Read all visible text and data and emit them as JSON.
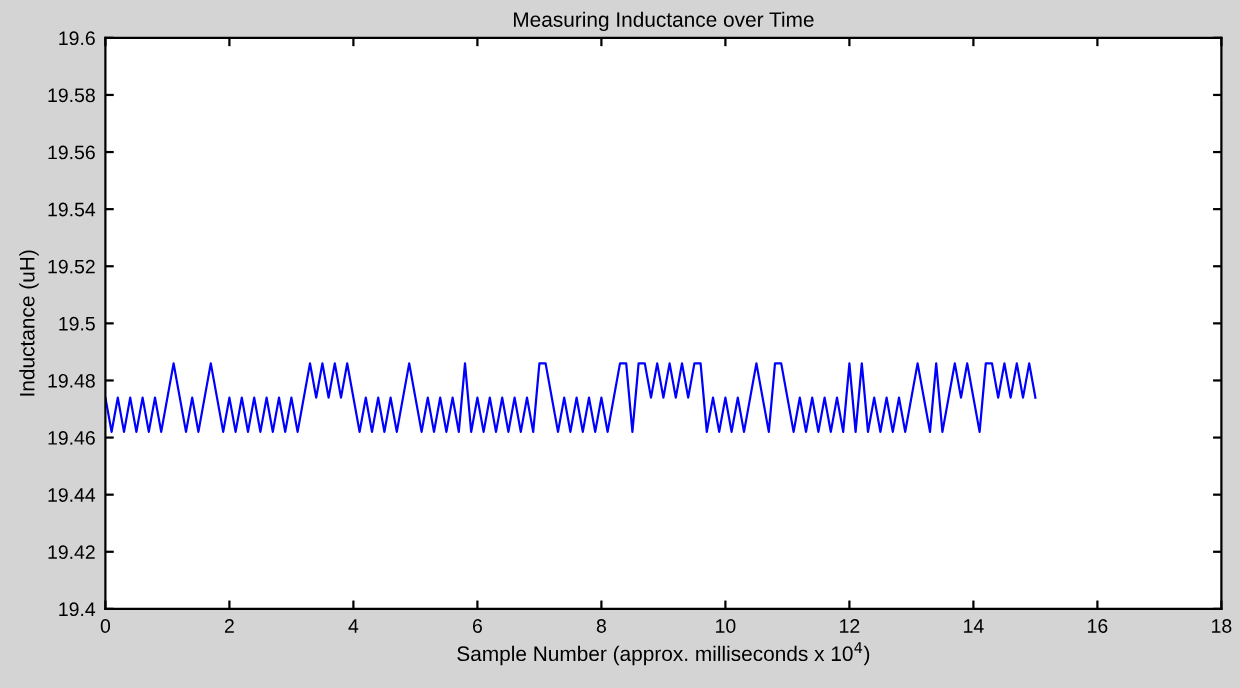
{
  "chart_data": {
    "type": "line",
    "title": "Measuring Inductance over Time",
    "xlabel": "Sample Number (approx. milliseconds x 10$^{4}$)",
    "ylabel": "Inductance (uH)",
    "xlim": [
      0,
      18
    ],
    "xticks": [
      0,
      2,
      4,
      6,
      8,
      10,
      12,
      14,
      16,
      18
    ],
    "ylim": [
      19.4,
      19.6
    ],
    "yticks": [
      19.4,
      19.42,
      19.44,
      19.46,
      19.48,
      19.5,
      19.52,
      19.54,
      19.56,
      19.58,
      19.6
    ],
    "grid": false,
    "legend": false,
    "marker": "none",
    "line_style": "solid",
    "series": [
      {
        "color": "#0000ff",
        "x": [
          0.0,
          0.1,
          0.2,
          0.3,
          0.4,
          0.5,
          0.6,
          0.7,
          0.8,
          0.9,
          1.0,
          1.1,
          1.2,
          1.3,
          1.4,
          1.5,
          1.6,
          1.7,
          1.8,
          1.9,
          2.0,
          2.1,
          2.2,
          2.3,
          2.4,
          2.5,
          2.6,
          2.7,
          2.8,
          2.9,
          3.0,
          3.1,
          3.2,
          3.3,
          3.4,
          3.5,
          3.6,
          3.7,
          3.8,
          3.9,
          4.0,
          4.1,
          4.2,
          4.3,
          4.4,
          4.5,
          4.6,
          4.7,
          4.8,
          4.9,
          5.0,
          5.1,
          5.2,
          5.3,
          5.4,
          5.5,
          5.6,
          5.7,
          5.8,
          5.9,
          6.0,
          6.1,
          6.2,
          6.3,
          6.4,
          6.5,
          6.6,
          6.7,
          6.8,
          6.9,
          7.0,
          7.1,
          7.2,
          7.3,
          7.4,
          7.5,
          7.6,
          7.7,
          7.8,
          7.9,
          8.0,
          8.1,
          8.2,
          8.3,
          8.4,
          8.5,
          8.6,
          8.7,
          8.8,
          8.9,
          9.0,
          9.1,
          9.2,
          9.3,
          9.4,
          9.5,
          9.6,
          9.7,
          9.8,
          9.9,
          10.0,
          10.1,
          10.2,
          10.3,
          10.4,
          10.5,
          10.6,
          10.7,
          10.8,
          10.9,
          11.0,
          11.1,
          11.2,
          11.3,
          11.4,
          11.5,
          11.6,
          11.7,
          11.8,
          11.9,
          12.0,
          12.1,
          12.2,
          12.3,
          12.4,
          12.5,
          12.6,
          12.7,
          12.8,
          12.9,
          13.0,
          13.1,
          13.2,
          13.3,
          13.4,
          13.5,
          13.6,
          13.7,
          13.8,
          13.9,
          14.0,
          14.1,
          14.2,
          14.3,
          14.4,
          14.5,
          14.6,
          14.7,
          14.8,
          14.9,
          15.0
        ],
        "values": [
          19.474,
          19.462,
          19.474,
          19.462,
          19.474,
          19.462,
          19.474,
          19.462,
          19.474,
          19.462,
          19.474,
          19.486,
          19.474,
          19.462,
          19.474,
          19.462,
          19.474,
          19.486,
          19.474,
          19.462,
          19.474,
          19.462,
          19.474,
          19.462,
          19.474,
          19.462,
          19.474,
          19.462,
          19.474,
          19.462,
          19.474,
          19.462,
          19.474,
          19.486,
          19.474,
          19.486,
          19.474,
          19.486,
          19.474,
          19.486,
          19.474,
          19.462,
          19.474,
          19.462,
          19.474,
          19.462,
          19.474,
          19.462,
          19.474,
          19.486,
          19.474,
          19.462,
          19.474,
          19.462,
          19.474,
          19.462,
          19.474,
          19.462,
          19.486,
          19.462,
          19.474,
          19.462,
          19.474,
          19.462,
          19.474,
          19.462,
          19.474,
          19.462,
          19.474,
          19.462,
          19.486,
          19.486,
          19.474,
          19.462,
          19.474,
          19.462,
          19.474,
          19.462,
          19.474,
          19.462,
          19.474,
          19.462,
          19.474,
          19.486,
          19.486,
          19.462,
          19.486,
          19.486,
          19.474,
          19.486,
          19.474,
          19.486,
          19.474,
          19.486,
          19.474,
          19.486,
          19.486,
          19.462,
          19.474,
          19.462,
          19.474,
          19.462,
          19.474,
          19.462,
          19.474,
          19.486,
          19.474,
          19.462,
          19.486,
          19.486,
          19.474,
          19.462,
          19.474,
          19.462,
          19.474,
          19.462,
          19.474,
          19.462,
          19.474,
          19.462,
          19.486,
          19.462,
          19.486,
          19.462,
          19.474,
          19.462,
          19.474,
          19.462,
          19.474,
          19.462,
          19.474,
          19.486,
          19.474,
          19.462,
          19.486,
          19.462,
          19.474,
          19.486,
          19.474,
          19.486,
          19.474,
          19.462,
          19.486,
          19.486,
          19.474,
          19.486,
          19.474,
          19.486,
          19.474,
          19.486,
          19.474
        ]
      }
    ]
  }
}
